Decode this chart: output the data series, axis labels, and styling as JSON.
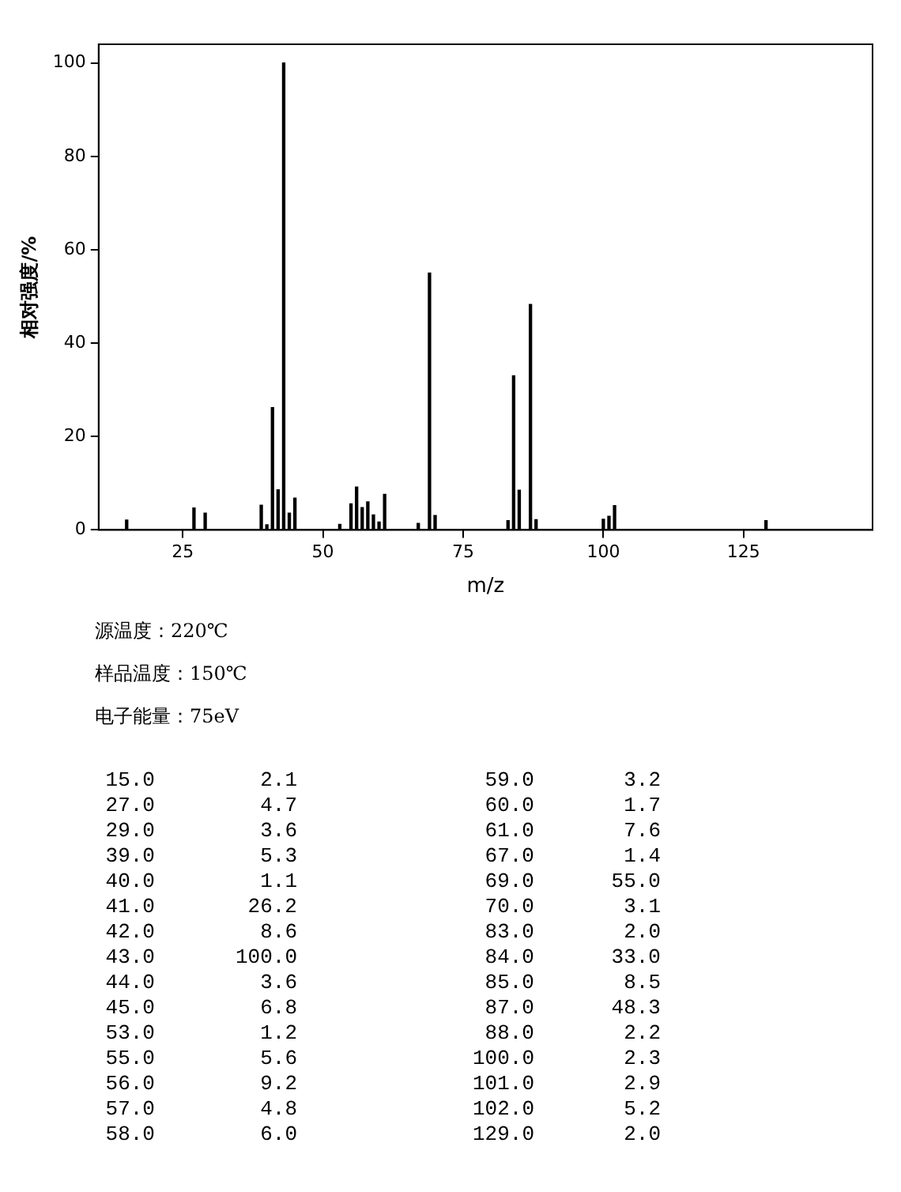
{
  "chart_data": {
    "type": "bar",
    "xlabel": "m/z",
    "ylabel": "相对强度/%",
    "x": [
      15,
      27,
      29,
      39,
      40,
      41,
      42,
      43,
      44,
      45,
      53,
      55,
      56,
      57,
      58,
      59,
      60,
      61,
      67,
      69,
      70,
      83,
      84,
      85,
      87,
      88,
      100,
      101,
      102,
      129
    ],
    "values": [
      2.1,
      4.7,
      3.6,
      5.3,
      1.1,
      26.2,
      8.6,
      100,
      3.6,
      6.8,
      1.2,
      5.6,
      9.2,
      4.8,
      6.0,
      3.2,
      1.7,
      7.6,
      1.4,
      55.0,
      3.1,
      2.0,
      33.0,
      8.5,
      48.3,
      2.2,
      2.3,
      2.9,
      5.2,
      2.0
    ],
    "color": "#000000",
    "xlim": [
      10,
      148
    ],
    "xticks": [
      25,
      50,
      75,
      100,
      125
    ],
    "ylim": [
      0,
      104
    ],
    "yticks": [
      0,
      20,
      40,
      60,
      80,
      100
    ],
    "annotations": [
      "源温度：220℃",
      "样品温度：150℃",
      "电子能量：75eV",
      "15.0",
      "2.1",
      "59.0",
      "3.2",
      "27.0",
      "4.7",
      "60.0",
      "1.7",
      "29.0",
      "3.6",
      "61.0",
      "7.6",
      "39.0",
      "5.3",
      "67.0",
      "1.4",
      "40.0",
      "1.1",
      "69.0",
      "55.0",
      "41.0",
      "26.2",
      "70.0",
      "3.1",
      "42.0",
      "8.6",
      "83.0",
      "2.0",
      "43.0",
      "100.0",
      "84.0",
      "33.0",
      "44.0",
      "3.6",
      "85.0",
      "8.5",
      "45.0",
      "6.8",
      "87.0",
      "48.3",
      "53.0",
      "1.2",
      "88.0",
      "2.2",
      "55.0",
      "5.6",
      "100.0",
      "2.3",
      "56.0",
      "9.2",
      "101.0",
      "2.9",
      "57.0",
      "4.8",
      "102.0",
      "5.2",
      "58.0",
      "6.0",
      "129.0",
      "2.0"
    ]
  }
}
